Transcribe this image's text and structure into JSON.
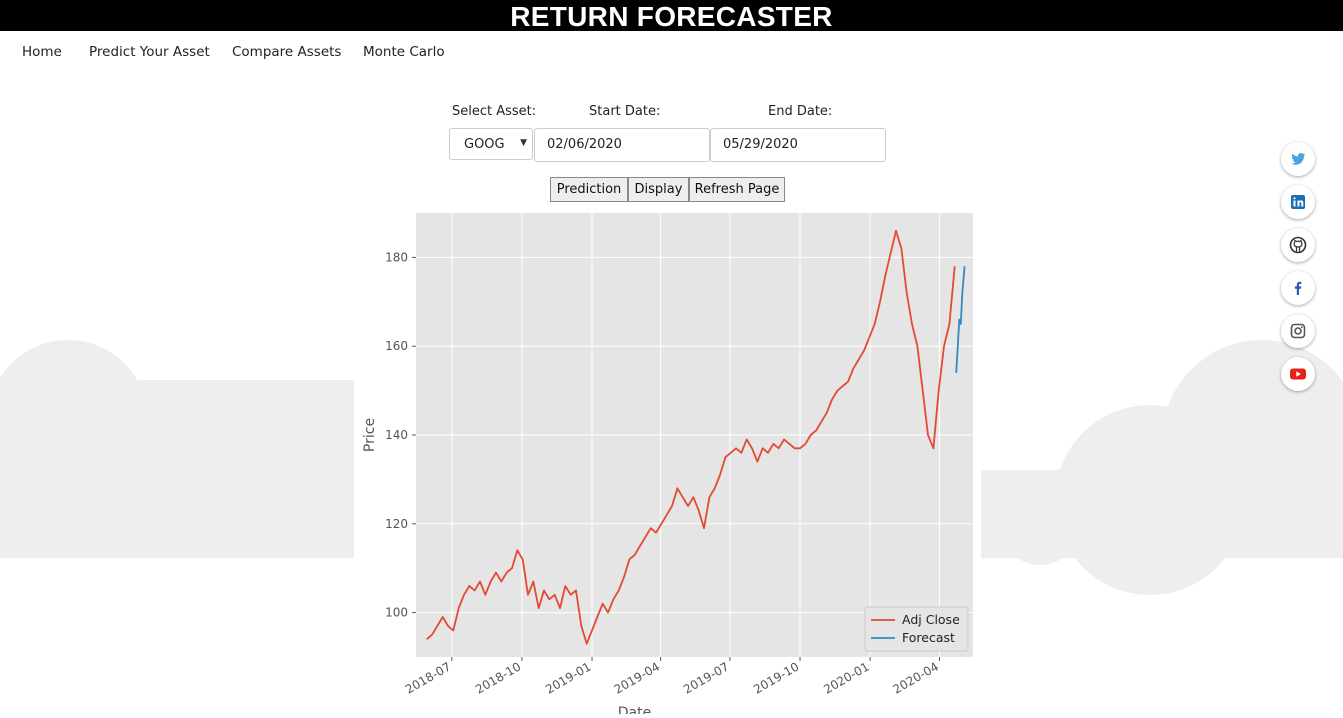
{
  "header": {
    "title": "RETURN FORECASTER"
  },
  "nav": [
    {
      "label": "Home"
    },
    {
      "label": "Predict Your Asset"
    },
    {
      "label": "Compare Assets"
    },
    {
      "label": "Monte Carlo"
    }
  ],
  "form": {
    "asset_label": "Select Asset:",
    "start_label": "Start Date:",
    "end_label": "End Date:",
    "asset_value": "GOOG",
    "start_value": "02/06/2020",
    "end_value": "05/29/2020",
    "buttons": [
      "Prediction",
      "Display",
      "Refresh Page"
    ]
  },
  "social": [
    "twitter-icon",
    "linkedin-icon",
    "github-icon",
    "facebook-icon",
    "instagram-icon",
    "youtube-icon"
  ],
  "colors": {
    "adj_close": "#E24A33",
    "forecast": "#348ABD",
    "plot_bg": "#E5E5E5",
    "header_bg": "#000000",
    "cloud": "#EEEEEE"
  },
  "chart_data": {
    "type": "line",
    "xlabel": "Date",
    "ylabel": "Price",
    "ylim": [
      90,
      190
    ],
    "xlim": [
      "2018-05-15",
      "2020-05-15"
    ],
    "yticks": [
      100,
      120,
      140,
      160,
      180
    ],
    "xticks": [
      {
        "label": "2018-07",
        "date": "2018-07-01"
      },
      {
        "label": "2018-10",
        "date": "2018-10-01"
      },
      {
        "label": "2019-01",
        "date": "2019-01-01"
      },
      {
        "label": "2019-04",
        "date": "2019-04-01"
      },
      {
        "label": "2019-07",
        "date": "2019-07-01"
      },
      {
        "label": "2019-10",
        "date": "2019-10-01"
      },
      {
        "label": "2020-01",
        "date": "2020-01-01"
      },
      {
        "label": "2020-04",
        "date": "2020-04-01"
      }
    ],
    "grid": true,
    "legend": "bottom-right",
    "series": [
      {
        "name": "Adj Close",
        "points": [
          [
            "2018-05-29",
            94
          ],
          [
            "2018-06-05",
            95
          ],
          [
            "2018-06-12",
            97
          ],
          [
            "2018-06-19",
            99
          ],
          [
            "2018-06-26",
            97
          ],
          [
            "2018-07-03",
            96
          ],
          [
            "2018-07-10",
            101
          ],
          [
            "2018-07-17",
            104
          ],
          [
            "2018-07-24",
            106
          ],
          [
            "2018-07-31",
            105
          ],
          [
            "2018-08-07",
            107
          ],
          [
            "2018-08-14",
            104
          ],
          [
            "2018-08-21",
            107
          ],
          [
            "2018-08-28",
            109
          ],
          [
            "2018-09-04",
            107
          ],
          [
            "2018-09-11",
            109
          ],
          [
            "2018-09-18",
            110
          ],
          [
            "2018-09-25",
            114
          ],
          [
            "2018-10-02",
            112
          ],
          [
            "2018-10-09",
            104
          ],
          [
            "2018-10-16",
            107
          ],
          [
            "2018-10-23",
            101
          ],
          [
            "2018-10-30",
            105
          ],
          [
            "2018-11-06",
            103
          ],
          [
            "2018-11-13",
            104
          ],
          [
            "2018-11-20",
            101
          ],
          [
            "2018-11-27",
            106
          ],
          [
            "2018-12-04",
            104
          ],
          [
            "2018-12-11",
            105
          ],
          [
            "2018-12-18",
            97
          ],
          [
            "2018-12-25",
            93
          ],
          [
            "2019-01-01",
            96
          ],
          [
            "2019-01-08",
            99
          ],
          [
            "2019-01-15",
            102
          ],
          [
            "2019-01-22",
            100
          ],
          [
            "2019-01-29",
            103
          ],
          [
            "2019-02-05",
            105
          ],
          [
            "2019-02-12",
            108
          ],
          [
            "2019-02-19",
            112
          ],
          [
            "2019-02-26",
            113
          ],
          [
            "2019-03-05",
            115
          ],
          [
            "2019-03-12",
            117
          ],
          [
            "2019-03-19",
            119
          ],
          [
            "2019-03-26",
            118
          ],
          [
            "2019-04-02",
            120
          ],
          [
            "2019-04-09",
            122
          ],
          [
            "2019-04-16",
            124
          ],
          [
            "2019-04-23",
            128
          ],
          [
            "2019-04-30",
            126
          ],
          [
            "2019-05-07",
            124
          ],
          [
            "2019-05-14",
            126
          ],
          [
            "2019-05-21",
            123
          ],
          [
            "2019-05-28",
            119
          ],
          [
            "2019-06-04",
            126
          ],
          [
            "2019-06-11",
            128
          ],
          [
            "2019-06-18",
            131
          ],
          [
            "2019-06-25",
            135
          ],
          [
            "2019-07-02",
            136
          ],
          [
            "2019-07-09",
            137
          ],
          [
            "2019-07-16",
            136
          ],
          [
            "2019-07-23",
            139
          ],
          [
            "2019-07-30",
            137
          ],
          [
            "2019-08-06",
            134
          ],
          [
            "2019-08-13",
            137
          ],
          [
            "2019-08-20",
            136
          ],
          [
            "2019-08-27",
            138
          ],
          [
            "2019-09-03",
            137
          ],
          [
            "2019-09-10",
            139
          ],
          [
            "2019-09-17",
            138
          ],
          [
            "2019-09-24",
            137
          ],
          [
            "2019-10-01",
            137
          ],
          [
            "2019-10-08",
            138
          ],
          [
            "2019-10-15",
            140
          ],
          [
            "2019-10-22",
            141
          ],
          [
            "2019-10-29",
            143
          ],
          [
            "2019-11-05",
            145
          ],
          [
            "2019-11-12",
            148
          ],
          [
            "2019-11-19",
            150
          ],
          [
            "2019-11-26",
            151
          ],
          [
            "2019-12-03",
            152
          ],
          [
            "2019-12-10",
            155
          ],
          [
            "2019-12-17",
            157
          ],
          [
            "2019-12-24",
            159
          ],
          [
            "2019-12-31",
            162
          ],
          [
            "2020-01-07",
            165
          ],
          [
            "2020-01-14",
            170
          ],
          [
            "2020-01-21",
            176
          ],
          [
            "2020-01-28",
            181
          ],
          [
            "2020-02-04",
            186
          ],
          [
            "2020-02-11",
            182
          ],
          [
            "2020-02-18",
            172
          ],
          [
            "2020-02-25",
            165
          ],
          [
            "2020-03-03",
            160
          ],
          [
            "2020-03-10",
            150
          ],
          [
            "2020-03-17",
            140
          ],
          [
            "2020-03-24",
            137
          ],
          [
            "2020-03-31",
            150
          ],
          [
            "2020-04-07",
            160
          ],
          [
            "2020-04-14",
            165
          ],
          [
            "2020-04-21",
            178
          ]
        ]
      },
      {
        "name": "Forecast",
        "points": [
          [
            "2020-04-23",
            154
          ],
          [
            "2020-04-25",
            160
          ],
          [
            "2020-04-27",
            166
          ],
          [
            "2020-04-29",
            165
          ],
          [
            "2020-05-01",
            172
          ],
          [
            "2020-05-04",
            178
          ]
        ]
      }
    ]
  }
}
